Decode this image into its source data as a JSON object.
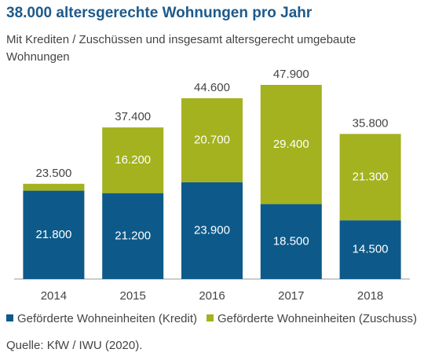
{
  "chart_data": {
    "type": "stacked-bar",
    "title": "38.000 altersgerechte Wohnungen pro Jahr",
    "subtitle": "Mit Krediten / Zuschüssen und insgesamt altersgerecht umgebaute Wohnungen",
    "categories": [
      "2014",
      "2015",
      "2016",
      "2017",
      "2018"
    ],
    "series": [
      {
        "name": "Geförderte Wohneinheiten (Kredit)",
        "color": "#0d5a8a",
        "values": [
          21800,
          21200,
          23900,
          18500,
          14500
        ],
        "value_labels": [
          "21.800",
          "21.200",
          "23.900",
          "18.500",
          "14.500"
        ]
      },
      {
        "name": "Geförderte Wohneinheiten (Zuschuss)",
        "color": "#a3b21e",
        "values": [
          1700,
          16200,
          20700,
          29400,
          21300
        ],
        "value_labels": [
          null,
          "16.200",
          "20.700",
          "29.400",
          "21.300"
        ]
      }
    ],
    "totals": {
      "values": [
        23500,
        37400,
        44600,
        47900,
        35800
      ],
      "value_labels": [
        "23.500",
        "37.400",
        "44.600",
        "47.900",
        "35.800"
      ]
    },
    "source": "Quelle: KfW / IWU (2020)."
  }
}
